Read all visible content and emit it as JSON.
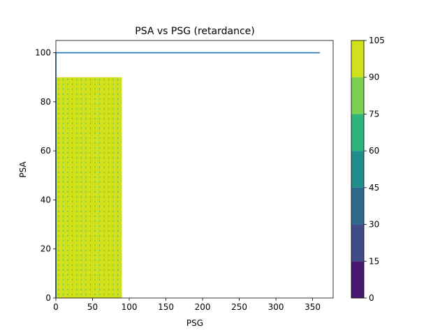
{
  "chart_data": {
    "type": "contourf",
    "title": "PSA vs PSG (retardance)",
    "xlabel": "PSG",
    "ylabel": "PSA",
    "xlim": [
      0,
      378
    ],
    "ylim": [
      0,
      105
    ],
    "xticks": [
      0,
      50,
      100,
      150,
      200,
      250,
      300,
      350
    ],
    "yticks": [
      0,
      20,
      40,
      60,
      80,
      100
    ],
    "filled_region": {
      "x_range": [
        0,
        90
      ],
      "y_range": [
        0,
        90
      ],
      "dominant_level_range": [
        90,
        105
      ],
      "dominant_color": "#d0e11c",
      "pattern_note_color": "#1f9e89"
    },
    "line_series": {
      "color": "#1f77b4",
      "points": [
        [
          0,
          0
        ],
        [
          0,
          100
        ],
        [
          360,
          100
        ]
      ]
    },
    "colorbar": {
      "levels": [
        0,
        15,
        30,
        45,
        60,
        75,
        90,
        105
      ],
      "tick_labels": [
        "0",
        "15",
        "30",
        "45",
        "60",
        "75",
        "90",
        "105"
      ],
      "colors": [
        "#46186e",
        "#3e4a89",
        "#30678d",
        "#208f8c",
        "#2fb47c",
        "#78d151",
        "#d0e11c"
      ]
    }
  }
}
